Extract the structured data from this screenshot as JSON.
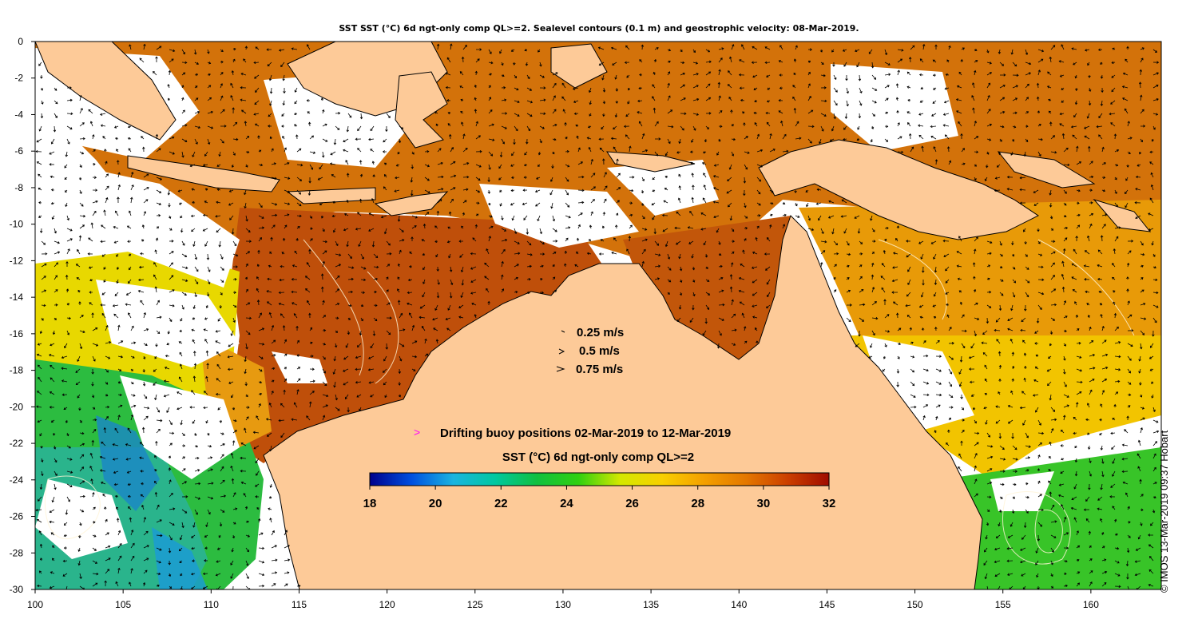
{
  "title": "SST SST (°C) 6d ngt-only comp QL>=2. Sealevel contours (0.1 m) and geostrophic velocity: 08-Mar-2019.",
  "credit": "© IMOS 13-Mar-2019 09:37 Hobart",
  "map": {
    "lon_range": [
      100,
      164
    ],
    "lat_range": [
      -30,
      0
    ],
    "lon_ticks": [
      100,
      105,
      110,
      115,
      120,
      125,
      130,
      135,
      140,
      145,
      150,
      155,
      160
    ],
    "lat_ticks": [
      0,
      -2,
      -4,
      -6,
      -8,
      -10,
      -12,
      -14,
      -16,
      -18,
      -20,
      -22,
      -24,
      -26,
      -28,
      -30
    ],
    "colors": {
      "land": "#fdca98",
      "cloud": "#ffffff",
      "frame": "#000000"
    }
  },
  "velocity_legend": [
    {
      "label": "0.25 m/s",
      "speed": 0.25
    },
    {
      "label": "0.5 m/s",
      "speed": 0.5
    },
    {
      "label": "0.75 m/s",
      "speed": 0.75
    }
  ],
  "buoy_legend": {
    "label": "Drifting buoy positions 02-Mar-2019 to 12-Mar-2019",
    "marker": ">",
    "marker_color": "#ff00ff"
  },
  "colorbar": {
    "title": "SST (°C) 6d ngt-only comp QL>=2",
    "min": 18,
    "max": 32,
    "ticks": [
      18,
      20,
      22,
      24,
      26,
      28,
      30,
      32
    ],
    "stops": [
      "#00008c",
      "#0050e0",
      "#1ab4e0",
      "#00c8a0",
      "#10c040",
      "#30d010",
      "#d4e800",
      "#f8d000",
      "#f4a000",
      "#e47800",
      "#cc4000",
      "#a00c00"
    ]
  }
}
